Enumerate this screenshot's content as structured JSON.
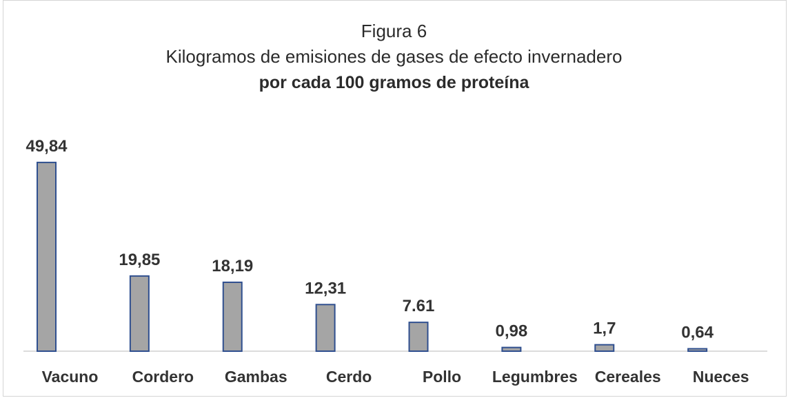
{
  "chart_data": {
    "type": "bar",
    "title": "Figura 6",
    "subtitle_line1": "Kilogramos de emisiones de gases de efecto invernadero",
    "subtitle_line2": "por cada 100 gramos de proteína",
    "categories": [
      "Vacuno",
      "Cordero",
      "Gambas",
      "Cerdo",
      "Pollo",
      "Legumbres",
      "Cereales",
      "Nueces"
    ],
    "values": [
      49.84,
      19.85,
      18.19,
      12.31,
      7.61,
      0.98,
      1.7,
      0.64
    ],
    "data_labels": [
      "49,84",
      "19,85",
      "18,19",
      "12,31",
      "7.61",
      "0,98",
      "1,7",
      "0,64"
    ],
    "xlabel": "",
    "ylabel": "",
    "ylim": [
      0,
      50
    ],
    "grid": false,
    "legend": "none",
    "colors": {
      "bar_fill": "#a5a5a5",
      "bar_stroke": "#2f4f8f"
    }
  }
}
